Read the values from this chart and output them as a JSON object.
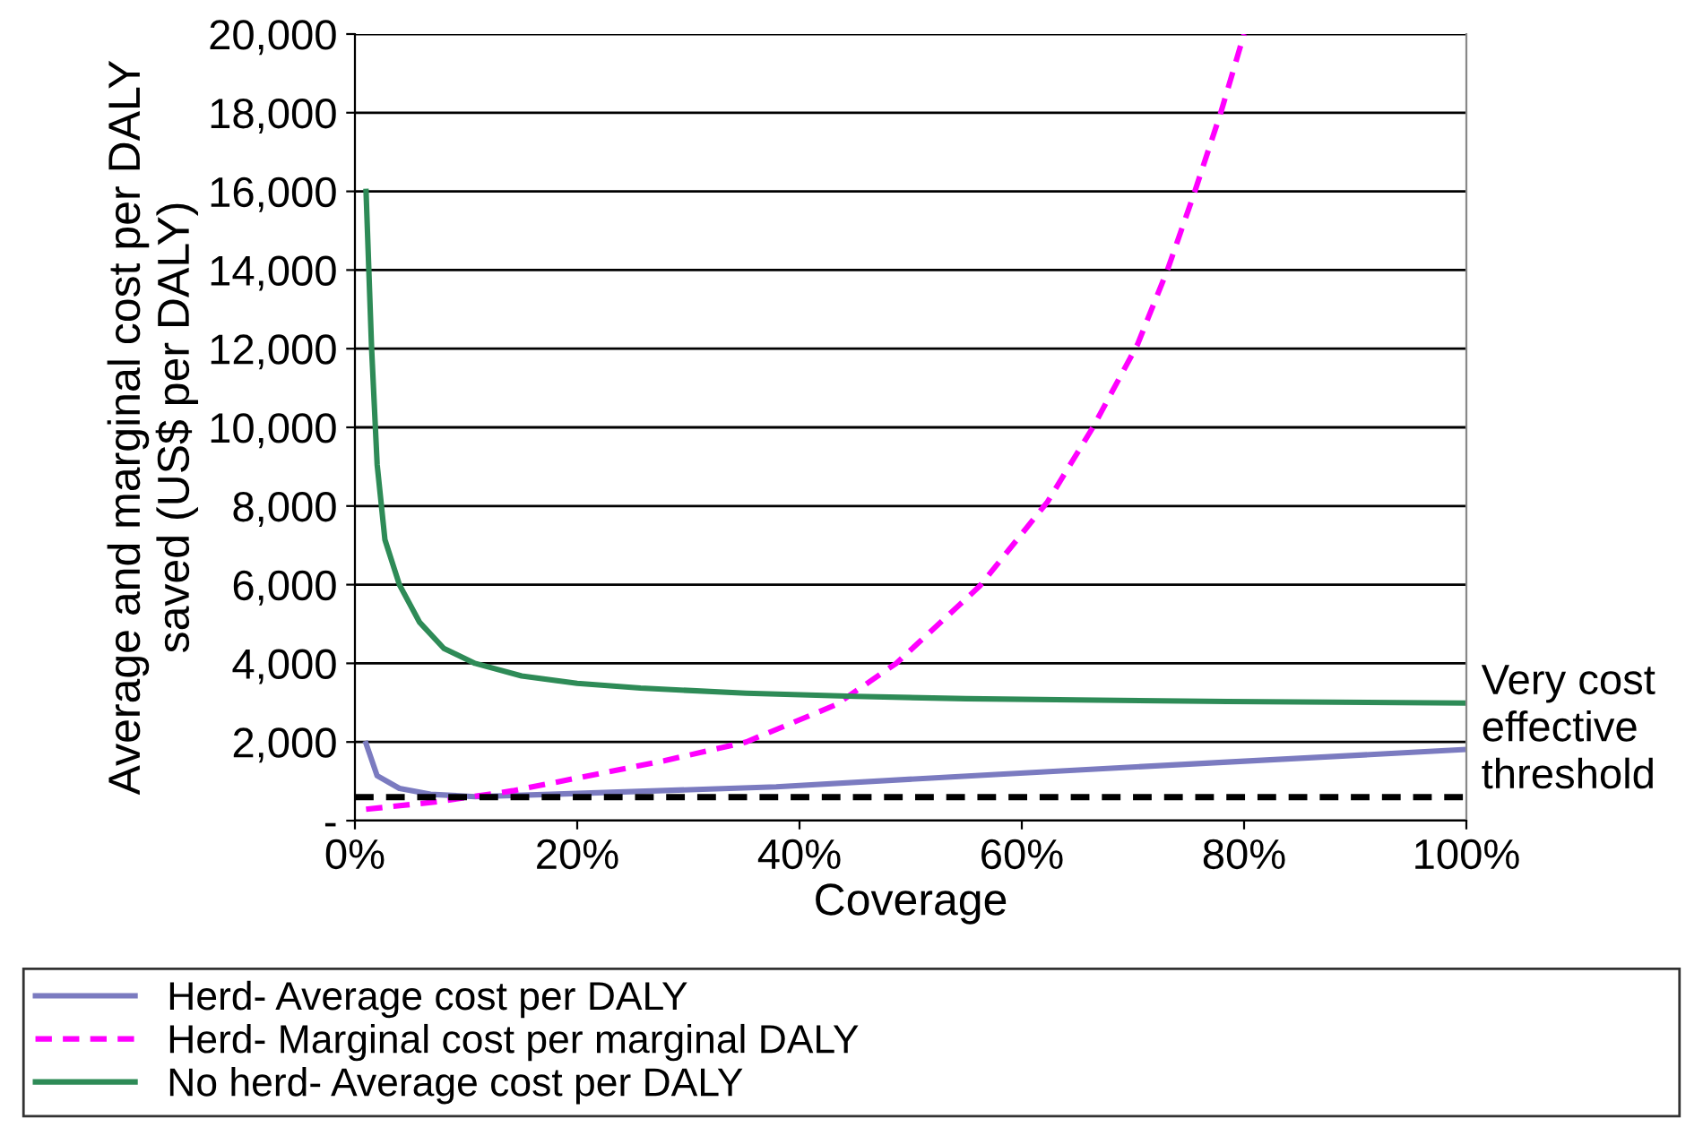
{
  "chart_data": {
    "type": "line",
    "xlabel": "Coverage",
    "ylabel": "Average and marginal cost per DALY saved (US$ per DALY)",
    "xlim": [
      0,
      100
    ],
    "xticks": [
      {
        "value": 0,
        "label": "0%"
      },
      {
        "value": 20,
        "label": "20%"
      },
      {
        "value": 40,
        "label": "40%"
      },
      {
        "value": 60,
        "label": "60%"
      },
      {
        "value": 80,
        "label": "80%"
      },
      {
        "value": 100,
        "label": "100%"
      }
    ],
    "ylim": [
      0,
      20000
    ],
    "yticks": [
      {
        "value": 0,
        "label": "-"
      },
      {
        "value": 2000,
        "label": "2,000"
      },
      {
        "value": 4000,
        "label": "4,000"
      },
      {
        "value": 6000,
        "label": "6,000"
      },
      {
        "value": 8000,
        "label": "8,000"
      },
      {
        "value": 10000,
        "label": "10,000"
      },
      {
        "value": 12000,
        "label": "12,000"
      },
      {
        "value": 14000,
        "label": "14,000"
      },
      {
        "value": 16000,
        "label": "16,000"
      },
      {
        "value": 18000,
        "label": "18,000"
      },
      {
        "value": 20000,
        "label": "20,000"
      }
    ],
    "grid": "y",
    "legend": "bottom",
    "series": [
      {
        "name": "Herd- Average cost per DALY",
        "color": "#7b7bc0",
        "line_style": "solid",
        "x": [
          1,
          2,
          4,
          6.8,
          10.8,
          17.6,
          37.9,
          58,
          78.5,
          100
        ],
        "values": [
          1960,
          1140,
          820,
          670,
          610,
          670,
          860,
          1180,
          1490,
          1810
        ]
      },
      {
        "name": "Herd- Marginal cost per marginal DALY",
        "color": "#ff00ff",
        "line_style": "dashed",
        "x": [
          1,
          7.4,
          14.2,
          21,
          27.8,
          35.2,
          43.3,
          48.7,
          56.2,
          62.3,
          66.4,
          70.4,
          73.1,
          75.5,
          77.9,
          80
        ],
        "values": [
          290,
          480,
          760,
          1140,
          1520,
          2000,
          2950,
          4000,
          5960,
          8100,
          10000,
          12100,
          14000,
          15940,
          18000,
          20000
        ]
      },
      {
        "name": "No herd- Average cost per DALY",
        "color": "#2e8b57",
        "line_style": "solid",
        "x": [
          1,
          1.5,
          2,
          2.7,
          4,
          5.8,
          8,
          10.8,
          15,
          20,
          25.7,
          35.2,
          45,
          55,
          65,
          78.5,
          100
        ],
        "values": [
          16000,
          12000,
          9050,
          7140,
          6000,
          5050,
          4380,
          4000,
          3680,
          3490,
          3370,
          3240,
          3160,
          3100,
          3070,
          3030,
          2990
        ]
      }
    ],
    "ref_lines": [
      {
        "axis": "y",
        "value": 600,
        "label": "Very cost\neffective\nthreshold",
        "color": "#000000",
        "line_style": "dashed"
      }
    ]
  }
}
